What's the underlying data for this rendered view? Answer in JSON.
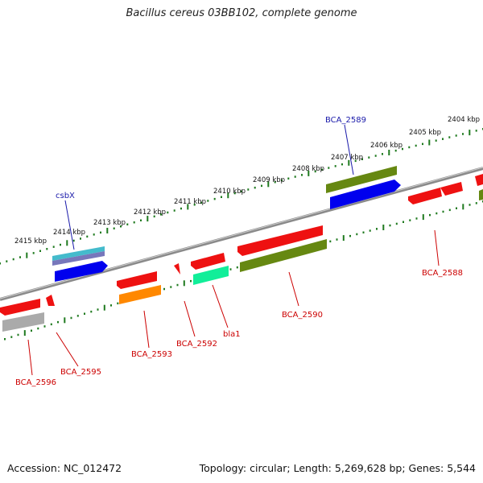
{
  "title": "Bacillus cereus 03BB102, complete genome",
  "footer": {
    "accession": "Accession: NC_012472",
    "summary": "Topology: circular; Length: 5,269,628 bp; Genes: 5,544"
  },
  "colors": {
    "backbone": "#7a7a7a",
    "tick_upper": "#1f7a1f",
    "tick_lower": "#1f7a1f",
    "label_red": "#cc0000",
    "label_blue": "#1a1aaa",
    "leader": "#cc0000",
    "leader_blue": "#1a1aaa"
  },
  "scale_labels": [
    "2415 kbp",
    "2414 kbp",
    "2413 kbp",
    "2412 kbp",
    "2411 kbp",
    "2410 kbp",
    "2409 kbp",
    "2408 kbp",
    "2407 kbp",
    "2406 kbp",
    "2405 kbp",
    "2404 kbp"
  ],
  "gene_labels": [
    "csbX",
    "BCA_2589",
    "BCA_2588",
    "BCA_2590",
    "bla1",
    "BCA_2592",
    "BCA_2593",
    "BCA_2595",
    "BCA_2596"
  ],
  "features": [
    {
      "name": "feature-red-upper-1",
      "color": "#ee1111"
    },
    {
      "name": "feature-red-upper-2",
      "color": "#ee1111"
    },
    {
      "name": "feature-red-upper-3",
      "color": "#ee1111"
    },
    {
      "name": "feature-red-upper-4",
      "color": "#ee1111"
    },
    {
      "name": "feature-red-upper-5",
      "color": "#ee1111"
    },
    {
      "name": "feature-red-upper-6",
      "color": "#ee1111"
    },
    {
      "name": "feature-red-upper-7",
      "color": "#ee1111"
    },
    {
      "name": "feature-red-upper-8",
      "color": "#ee1111"
    },
    {
      "name": "feature-red-upper-9",
      "color": "#ee1111"
    },
    {
      "name": "feature-red-upper-10",
      "color": "#ee1111"
    },
    {
      "name": "feature-grey",
      "color": "#aaaaaa"
    },
    {
      "name": "feature-orange",
      "color": "#ff8800"
    },
    {
      "name": "feature-green-bla1",
      "color": "#11ee99"
    },
    {
      "name": "feature-olive-long",
      "color": "#668811"
    },
    {
      "name": "feature-olive-upper",
      "color": "#668811"
    },
    {
      "name": "feature-blue-upper",
      "color": "#0000ee"
    },
    {
      "name": "feature-blue-csbx",
      "color": "#0000ee"
    },
    {
      "name": "feature-multi-csbx",
      "color": "#5555aa"
    }
  ]
}
